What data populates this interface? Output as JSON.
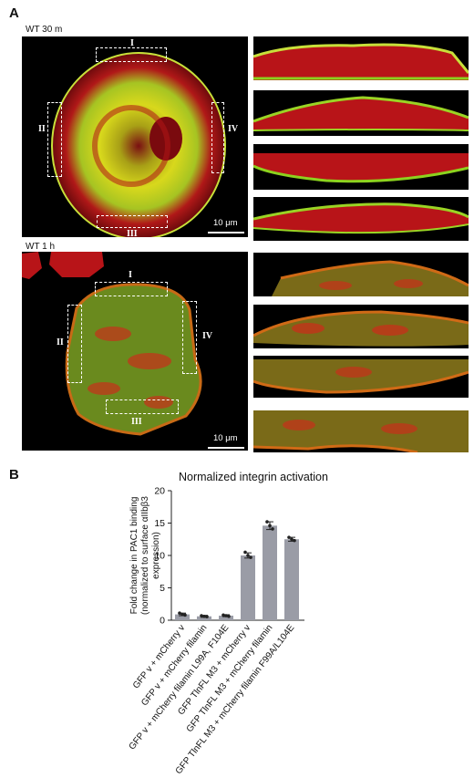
{
  "figure": {
    "panel_a_letter": "A",
    "panel_b_letter": "B",
    "top_condition": "WT 30 m",
    "bottom_condition": "WT 1 h",
    "scale_bar_top": "10 μm",
    "scale_bar_bottom": "10 μm",
    "roi_labels_top": [
      "I",
      "II",
      "III",
      "IV"
    ],
    "roi_labels_bottom": [
      "I",
      "II",
      "III",
      "IV"
    ]
  },
  "colors": {
    "actin_red": "#c8141e",
    "integrin_green": "#8cd21e",
    "merge_yellow": "#e6e614",
    "bar_gray": "#9a9ca6"
  },
  "chart_data": {
    "type": "bar",
    "title": "Normalized integrin activation",
    "ylabel_lines": [
      "Fold change in PAC1 binding",
      "(normalized to surface αIIbβ3",
      "expression)"
    ],
    "ylim": [
      0,
      20
    ],
    "yticks": [
      0,
      5,
      10,
      15,
      20
    ],
    "categories": [
      "GFP v + mCherry v",
      "GFP v + mCherry filamin",
      "GFP v + mCherry  filamin L99A, F104E",
      "GFP TlnFL M3 + mCherry v",
      "GFP TlnFL M3 + mCherry filamin",
      "GFP TlnFL M3 + mCherry filamin F99A/L104E"
    ],
    "values": [
      0.9,
      0.6,
      0.7,
      10.0,
      14.6,
      12.5
    ],
    "errors": [
      0.2,
      0.15,
      0.15,
      0.4,
      0.6,
      0.3
    ],
    "points": [
      [
        1.1,
        0.9,
        0.8
      ],
      [
        0.7,
        0.6,
        0.55
      ],
      [
        0.8,
        0.7,
        0.6
      ],
      [
        10.5,
        10.0,
        9.7
      ],
      [
        15.2,
        14.6,
        14.1
      ],
      [
        12.8,
        12.5,
        12.3
      ]
    ]
  }
}
